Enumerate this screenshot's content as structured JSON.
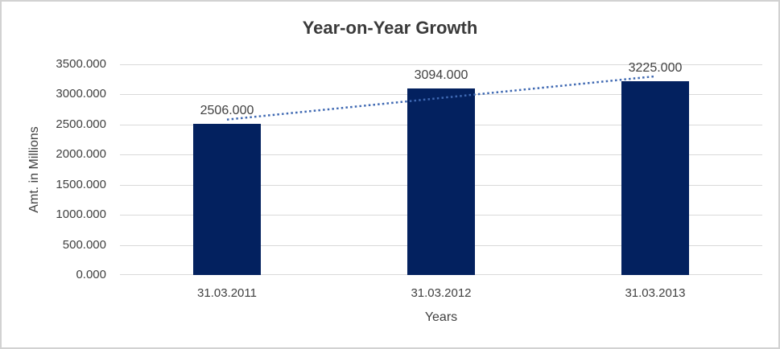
{
  "frame": {
    "border_color": "#d2d2d2",
    "background": "#ffffff"
  },
  "chart_data": {
    "type": "bar",
    "title": "Year-on-Year Growth",
    "xlabel": "Years",
    "ylabel": "Amt. in Millions",
    "categories": [
      "31.03.2011",
      "31.03.2012",
      "31.03.2013"
    ],
    "values": [
      2506,
      3094,
      3225
    ],
    "data_labels": [
      "2506.000",
      "3094.000",
      "3225.000"
    ],
    "y_ticks": [
      "3500.000",
      "3000.000",
      "2500.000",
      "2000.000",
      "1500.000",
      "1000.000",
      "500.000",
      "0.000"
    ],
    "ylim": [
      0,
      3500
    ],
    "y_step": 500,
    "grid": true,
    "legend": "none",
    "bar_color": "#03215f",
    "gridline_color": "#d9d9d9",
    "text_color": "#404040",
    "trendline": {
      "type": "linear",
      "style": "dotted",
      "color": "#3e68b2"
    }
  }
}
